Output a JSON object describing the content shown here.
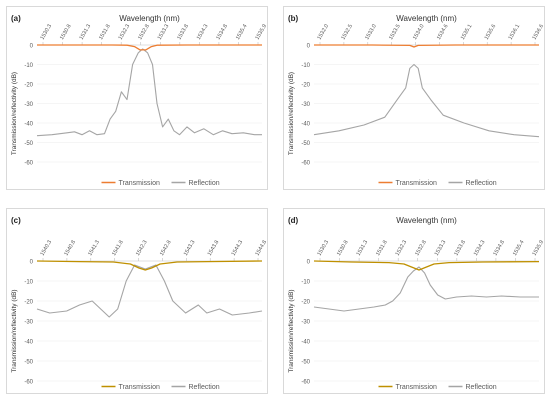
{
  "chart_data": [
    {
      "type": "line",
      "panel_label": "(a)",
      "xlabel": "Wavelength (nm)",
      "ylabel": "Transmission/reflectivity  (dB)",
      "x_ticks": [
        "1530.3",
        "1530.8",
        "1531.3",
        "1531.8",
        "1532.3",
        "1532.8",
        "1533.3",
        "1533.8",
        "1534.3",
        "1534.8",
        "1535.4",
        "1535.9"
      ],
      "x_range": [
        1530.0,
        1536.0
      ],
      "y_ticks": [
        "0",
        "-10",
        "-20",
        "-30",
        "-40",
        "-50",
        "-60"
      ],
      "ylim": [
        -60,
        0
      ],
      "legend": [
        "Transmission",
        "Reflection"
      ],
      "legend_position": "bottom",
      "colors": {
        "transmission": "#ed7d31",
        "reflection": "#a5a5a5"
      },
      "series": [
        {
          "name": "Transmission",
          "x": [
            1530.0,
            1531.0,
            1532.0,
            1532.4,
            1532.6,
            1532.75,
            1532.9,
            1533.05,
            1533.2,
            1534.0,
            1535.0,
            1536.0
          ],
          "y": [
            0,
            0,
            0,
            -0.1,
            -0.8,
            -2.5,
            -2.5,
            -0.8,
            -0.1,
            0,
            0,
            0
          ]
        },
        {
          "name": "Reflection",
          "x": [
            1530.0,
            1530.4,
            1530.8,
            1531.0,
            1531.2,
            1531.4,
            1531.6,
            1531.8,
            1531.95,
            1532.1,
            1532.25,
            1532.4,
            1532.55,
            1532.7,
            1532.82,
            1532.95,
            1533.08,
            1533.2,
            1533.35,
            1533.5,
            1533.65,
            1533.8,
            1534.0,
            1534.2,
            1534.45,
            1534.7,
            1534.95,
            1535.2,
            1535.5,
            1535.8,
            1536.0
          ],
          "y": [
            -46.5,
            -46,
            -45,
            -44.5,
            -46,
            -44,
            -46,
            -45.5,
            -38,
            -34,
            -24,
            -28,
            -10,
            -4,
            -2,
            -4,
            -10,
            -30,
            -42,
            -38,
            -44,
            -46,
            -42,
            -45,
            -43,
            -46,
            -44,
            -45.5,
            -45,
            -46,
            -46
          ]
        }
      ]
    },
    {
      "type": "line",
      "panel_label": "(b)",
      "xlabel": "Wavelength (nm)",
      "ylabel": "Transmission/reflectivity  (dB)",
      "x_ticks": [
        "1532.0",
        "1532.5",
        "1533.0",
        "1533.5",
        "1534.0",
        "1534.6",
        "1535.1",
        "1535.6",
        "1536.1",
        "1536.6"
      ],
      "x_range": [
        1531.6,
        1537.0
      ],
      "y_ticks": [
        "0",
        "-10",
        "-20",
        "-30",
        "-40",
        "-50",
        "-60"
      ],
      "ylim": [
        -60,
        0
      ],
      "legend": [
        "Transmission",
        "Reflection"
      ],
      "legend_position": "bottom",
      "colors": {
        "transmission": "#ed7d31",
        "reflection": "#a5a5a5"
      },
      "series": [
        {
          "name": "Transmission",
          "x": [
            1531.6,
            1533.0,
            1533.9,
            1534.0,
            1534.1,
            1535.0,
            1537.0
          ],
          "y": [
            0,
            0,
            -0.2,
            -1.0,
            -0.2,
            0,
            0
          ]
        },
        {
          "name": "Reflection",
          "x": [
            1531.6,
            1532.2,
            1532.8,
            1533.3,
            1533.6,
            1533.8,
            1533.9,
            1534.0,
            1534.1,
            1534.2,
            1534.4,
            1534.7,
            1535.2,
            1535.8,
            1536.4,
            1537.0
          ],
          "y": [
            -46,
            -44,
            -41,
            -37,
            -28,
            -22,
            -12,
            -10,
            -12,
            -22,
            -28,
            -36,
            -40,
            -44,
            -46,
            -47
          ]
        }
      ]
    },
    {
      "type": "line",
      "panel_label": "(c)",
      "xlabel": "",
      "ylabel": "Transmission/reflectivity  (dB)",
      "x_ticks": [
        "1540.3",
        "1540.8",
        "1541.3",
        "1541.8",
        "1542.3",
        "1542.8",
        "1543.3",
        "1543.8",
        "1544.3",
        "1544.8"
      ],
      "x_range": [
        1540.0,
        1545.3
      ],
      "y_ticks": [
        "0",
        "-10",
        "-20",
        "-30",
        "-40",
        "-50",
        "-60"
      ],
      "ylim": [
        -60,
        0
      ],
      "legend": [
        "Transmission",
        "Reflection"
      ],
      "legend_position": "bottom",
      "colors": {
        "transmission": "#bf9000",
        "reflection": "#a5a5a5"
      },
      "series": [
        {
          "name": "Transmission",
          "x": [
            1540.0,
            1541.0,
            1541.8,
            1542.2,
            1542.4,
            1542.55,
            1542.7,
            1542.9,
            1543.3,
            1544.0,
            1545.3
          ],
          "y": [
            0,
            -0.3,
            -0.5,
            -1.5,
            -3.5,
            -4.5,
            -3.5,
            -1.5,
            -0.5,
            -0.3,
            0
          ]
        },
        {
          "name": "Reflection",
          "x": [
            1540.0,
            1540.3,
            1540.7,
            1541.0,
            1541.3,
            1541.5,
            1541.7,
            1541.9,
            1542.1,
            1542.3,
            1542.55,
            1542.8,
            1543.0,
            1543.2,
            1543.5,
            1543.8,
            1544.0,
            1544.3,
            1544.6,
            1545.0,
            1545.3
          ],
          "y": [
            -24,
            -26,
            -25,
            -22,
            -20,
            -24,
            -28,
            -24,
            -10,
            -2,
            -4,
            -2,
            -10,
            -20,
            -26,
            -22,
            -26,
            -24,
            -27,
            -26,
            -25
          ]
        }
      ]
    },
    {
      "type": "line",
      "panel_label": "(d)",
      "xlabel": "Wavelength (nm)",
      "ylabel": "Transmission/reflectivity  (dB)",
      "x_ticks": [
        "1530.3",
        "1530.8",
        "1531.3",
        "1531.8",
        "1532.3",
        "1532.8",
        "1533.3",
        "1533.8",
        "1534.3",
        "1534.8",
        "1535.4",
        "1535.9"
      ],
      "x_range": [
        1530.0,
        1536.0
      ],
      "y_ticks": [
        "0",
        "-10",
        "-20",
        "-30",
        "-40",
        "-50",
        "-60"
      ],
      "ylim": [
        -60,
        0
      ],
      "legend": [
        "Transmission",
        "Reflection"
      ],
      "legend_position": "bottom",
      "colors": {
        "transmission": "#bf9000",
        "reflection": "#a5a5a5"
      },
      "series": [
        {
          "name": "Transmission",
          "x": [
            1530.0,
            1531.0,
            1532.0,
            1532.4,
            1532.6,
            1532.8,
            1533.0,
            1533.2,
            1533.6,
            1534.5,
            1536.0
          ],
          "y": [
            0,
            -0.5,
            -0.8,
            -1.5,
            -3,
            -4.5,
            -3,
            -1.5,
            -0.8,
            -0.5,
            -0.3
          ]
        },
        {
          "name": "Reflection",
          "x": [
            1530.0,
            1530.4,
            1530.8,
            1531.2,
            1531.6,
            1531.9,
            1532.1,
            1532.3,
            1532.5,
            1532.65,
            1532.8,
            1532.95,
            1533.1,
            1533.3,
            1533.5,
            1533.8,
            1534.2,
            1534.6,
            1535.0,
            1535.5,
            1536.0
          ],
          "y": [
            -23,
            -24,
            -25,
            -24,
            -23,
            -22,
            -20,
            -16,
            -8,
            -5,
            -3,
            -6,
            -12,
            -17,
            -19,
            -18,
            -17.5,
            -18,
            -17.5,
            -18,
            -18
          ]
        }
      ]
    }
  ]
}
